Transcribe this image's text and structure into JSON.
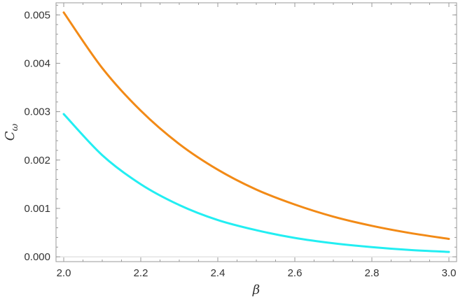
{
  "chart_data": {
    "type": "line",
    "title": "",
    "xlabel": "β",
    "ylabel": "C",
    "ylabel_subscript": "ω",
    "xlim": [
      1.98,
      3.02
    ],
    "ylim": [
      -0.0001,
      0.00525
    ],
    "x_ticks": [
      2.0,
      2.2,
      2.4,
      2.6,
      2.8,
      3.0
    ],
    "x_tick_labels": [
      "2.0",
      "2.2",
      "2.4",
      "2.6",
      "2.8",
      "3.0"
    ],
    "y_ticks": [
      0.0,
      0.001,
      0.002,
      0.003,
      0.004,
      0.005
    ],
    "y_tick_labels": [
      "0.000",
      "0.001",
      "0.002",
      "0.003",
      "0.004",
      "0.005"
    ],
    "grid": false,
    "legend": "none",
    "series": [
      {
        "color": "#F28A16",
        "x": [
          2.0,
          2.1,
          2.2,
          2.3,
          2.4,
          2.5,
          2.6,
          2.7,
          2.8,
          2.9,
          3.0
        ],
        "y": [
          0.00505,
          0.0039,
          0.00302,
          0.00233,
          0.0018,
          0.00139,
          0.00108,
          0.00083,
          0.00064,
          0.00049,
          0.00037
        ]
      },
      {
        "color": "#22EEF2",
        "x": [
          2.0,
          2.1,
          2.2,
          2.3,
          2.4,
          2.5,
          2.6,
          2.7,
          2.8,
          2.9,
          3.0
        ],
        "y": [
          0.00295,
          0.0021,
          0.0015,
          0.00107,
          0.00076,
          0.00055,
          0.00039,
          0.00028,
          0.0002,
          0.00014,
          0.0001
        ]
      }
    ]
  }
}
